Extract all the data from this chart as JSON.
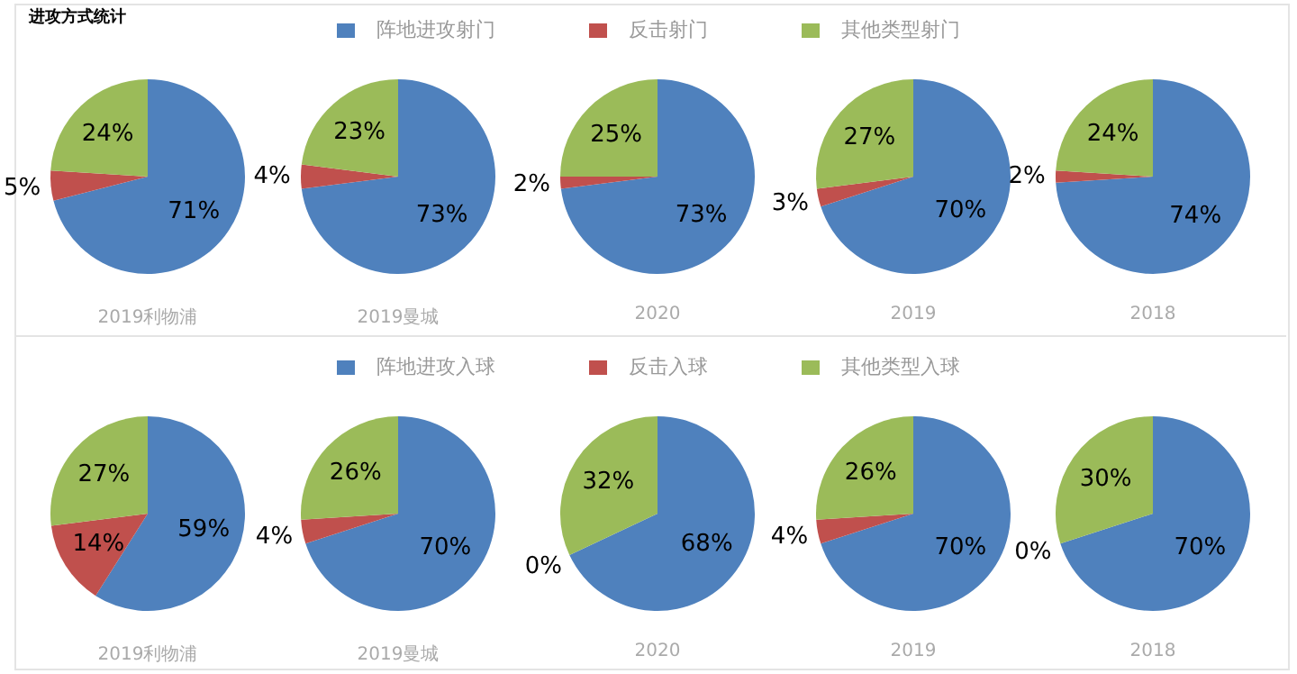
{
  "chart_data": [
    {
      "type": "pie",
      "title": "进攻方式统计",
      "legend": "top",
      "categories": [
        "阵地进攻射门",
        "反击射门",
        "其他类型射门"
      ],
      "values": [
        71,
        5,
        24
      ],
      "value_labels": [
        "71%",
        "5%",
        "24%"
      ],
      "colors": [
        "#4f81bd",
        "#c0504d",
        "#9bbb59"
      ],
      "xlabel": "2019利物浦"
    },
    {
      "type": "pie",
      "categories": [
        null,
        null,
        null
      ],
      "values": [
        73,
        4,
        23
      ],
      "value_labels": [
        "73%",
        "4%",
        "23%"
      ],
      "colors": [
        "#4f81bd",
        "#c0504d",
        "#9bbb59"
      ],
      "xlabel": "2019曼城"
    },
    {
      "type": "pie",
      "categories": [
        null,
        null,
        null
      ],
      "values": [
        73,
        2,
        25
      ],
      "value_labels": [
        "73%",
        "2%",
        "25%"
      ],
      "colors": [
        "#4f81bd",
        "#c0504d",
        "#9bbb59"
      ],
      "xlabel": "2020"
    },
    {
      "type": "pie",
      "categories": [
        null,
        null,
        null
      ],
      "values": [
        70,
        3,
        27
      ],
      "value_labels": [
        "70%",
        "3%",
        "27%"
      ],
      "colors": [
        "#4f81bd",
        "#c0504d",
        "#9bbb59"
      ],
      "xlabel": "2019"
    },
    {
      "type": "pie",
      "categories": [
        null,
        null,
        null
      ],
      "values": [
        74,
        2,
        24
      ],
      "value_labels": [
        "74%",
        "2%",
        "24%"
      ],
      "colors": [
        "#4f81bd",
        "#c0504d",
        "#9bbb59"
      ],
      "xlabel": "2018"
    },
    {
      "type": "pie",
      "legend": "top",
      "categories": [
        "阵地进攻入球",
        "反击入球",
        "其他类型入球"
      ],
      "values": [
        59,
        14,
        27
      ],
      "value_labels": [
        "59%",
        "14%",
        "27%"
      ],
      "colors": [
        "#4f81bd",
        "#c0504d",
        "#9bbb59"
      ],
      "xlabel": "2019利物浦"
    },
    {
      "type": "pie",
      "categories": [
        null,
        null,
        null
      ],
      "values": [
        70,
        4,
        26
      ],
      "value_labels": [
        "70%",
        "4%",
        "26%"
      ],
      "colors": [
        "#4f81bd",
        "#c0504d",
        "#9bbb59"
      ],
      "xlabel": "2019曼城"
    },
    {
      "type": "pie",
      "categories": [
        null,
        null,
        null
      ],
      "values": [
        68,
        0,
        32
      ],
      "value_labels": [
        "68%",
        "0%",
        "32%"
      ],
      "colors": [
        "#4f81bd",
        "#c0504d",
        "#9bbb59"
      ],
      "xlabel": "2020"
    },
    {
      "type": "pie",
      "categories": [
        null,
        null,
        null
      ],
      "values": [
        70,
        4,
        26
      ],
      "value_labels": [
        "70%",
        "4%",
        "26%"
      ],
      "colors": [
        "#4f81bd",
        "#c0504d",
        "#9bbb59"
      ],
      "xlabel": "2019"
    },
    {
      "type": "pie",
      "categories": [
        null,
        null,
        null
      ],
      "values": [
        70,
        0,
        30
      ],
      "value_labels": [
        "70%",
        "0%",
        "30%"
      ],
      "colors": [
        "#4f81bd",
        "#c0504d",
        "#9bbb59"
      ],
      "xlabel": "2018"
    }
  ]
}
